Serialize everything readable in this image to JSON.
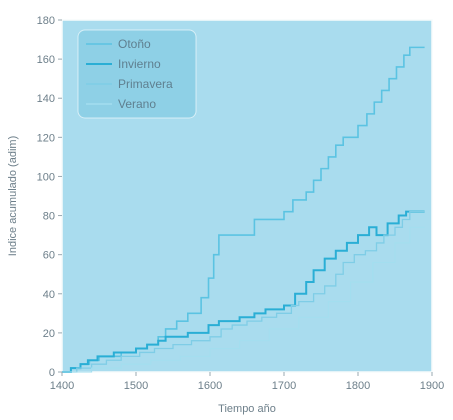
{
  "chart_data": {
    "type": "line",
    "xlabel": "Tiempo año",
    "ylabel": "Indice acumulado (adim)",
    "xlim": [
      1400,
      1900
    ],
    "ylim": [
      0,
      180
    ],
    "x_ticks": [
      "1400",
      "1500",
      "1600",
      "1700",
      "1800",
      "1900"
    ],
    "y_ticks": [
      "0",
      "20",
      "40",
      "60",
      "80",
      "100",
      "120",
      "140",
      "160",
      "180"
    ],
    "grid": false,
    "legend_position": "top-left",
    "colors": {
      "plot_background": "#a9dcee",
      "frame": "#f7fbfc",
      "legend_background": "#8ed0e6",
      "axis_text": "#6d7f8a"
    },
    "series": [
      {
        "name": "Otoño",
        "color": "#5bc3e2",
        "width": 1.6,
        "points": [
          [
            1400,
            0
          ],
          [
            1412,
            0
          ],
          [
            1412,
            2
          ],
          [
            1425,
            2
          ],
          [
            1425,
            4
          ],
          [
            1437,
            4
          ],
          [
            1437,
            6
          ],
          [
            1450,
            6
          ],
          [
            1450,
            8
          ],
          [
            1480,
            8
          ],
          [
            1480,
            10
          ],
          [
            1500,
            10
          ],
          [
            1500,
            12
          ],
          [
            1515,
            12
          ],
          [
            1515,
            14
          ],
          [
            1530,
            14
          ],
          [
            1530,
            18
          ],
          [
            1540,
            18
          ],
          [
            1540,
            22
          ],
          [
            1555,
            22
          ],
          [
            1555,
            26
          ],
          [
            1570,
            26
          ],
          [
            1570,
            30
          ],
          [
            1588,
            30
          ],
          [
            1588,
            38
          ],
          [
            1598,
            38
          ],
          [
            1598,
            48
          ],
          [
            1605,
            48
          ],
          [
            1605,
            60
          ],
          [
            1612,
            60
          ],
          [
            1612,
            70
          ],
          [
            1660,
            70
          ],
          [
            1660,
            78
          ],
          [
            1700,
            78
          ],
          [
            1700,
            82
          ],
          [
            1712,
            82
          ],
          [
            1712,
            88
          ],
          [
            1730,
            88
          ],
          [
            1730,
            92
          ],
          [
            1740,
            92
          ],
          [
            1740,
            98
          ],
          [
            1750,
            98
          ],
          [
            1750,
            104
          ],
          [
            1760,
            104
          ],
          [
            1760,
            110
          ],
          [
            1770,
            110
          ],
          [
            1770,
            116
          ],
          [
            1780,
            116
          ],
          [
            1780,
            120
          ],
          [
            1800,
            120
          ],
          [
            1800,
            126
          ],
          [
            1812,
            126
          ],
          [
            1812,
            132
          ],
          [
            1822,
            132
          ],
          [
            1822,
            138
          ],
          [
            1832,
            138
          ],
          [
            1832,
            144
          ],
          [
            1842,
            144
          ],
          [
            1842,
            150
          ],
          [
            1852,
            150
          ],
          [
            1852,
            156
          ],
          [
            1862,
            156
          ],
          [
            1862,
            162
          ],
          [
            1870,
            162
          ],
          [
            1870,
            166
          ],
          [
            1890,
            166
          ]
        ]
      },
      {
        "name": "Invierno",
        "color": "#2aaed5",
        "width": 2.0,
        "points": [
          [
            1400,
            0
          ],
          [
            1412,
            0
          ],
          [
            1412,
            2
          ],
          [
            1425,
            2
          ],
          [
            1425,
            4
          ],
          [
            1435,
            4
          ],
          [
            1435,
            6
          ],
          [
            1448,
            6
          ],
          [
            1448,
            8
          ],
          [
            1470,
            8
          ],
          [
            1470,
            10
          ],
          [
            1500,
            10
          ],
          [
            1500,
            12
          ],
          [
            1515,
            12
          ],
          [
            1515,
            14
          ],
          [
            1530,
            14
          ],
          [
            1530,
            16
          ],
          [
            1540,
            16
          ],
          [
            1540,
            18
          ],
          [
            1570,
            18
          ],
          [
            1570,
            20
          ],
          [
            1598,
            20
          ],
          [
            1598,
            24
          ],
          [
            1612,
            24
          ],
          [
            1612,
            26
          ],
          [
            1640,
            26
          ],
          [
            1640,
            28
          ],
          [
            1660,
            28
          ],
          [
            1660,
            30
          ],
          [
            1675,
            30
          ],
          [
            1675,
            32
          ],
          [
            1700,
            32
          ],
          [
            1700,
            34
          ],
          [
            1715,
            34
          ],
          [
            1715,
            40
          ],
          [
            1730,
            40
          ],
          [
            1730,
            46
          ],
          [
            1740,
            46
          ],
          [
            1740,
            52
          ],
          [
            1755,
            52
          ],
          [
            1755,
            58
          ],
          [
            1770,
            58
          ],
          [
            1770,
            62
          ],
          [
            1785,
            62
          ],
          [
            1785,
            66
          ],
          [
            1800,
            66
          ],
          [
            1800,
            70
          ],
          [
            1815,
            70
          ],
          [
            1815,
            74
          ],
          [
            1825,
            74
          ],
          [
            1825,
            70
          ],
          [
            1840,
            70
          ],
          [
            1840,
            76
          ],
          [
            1855,
            76
          ],
          [
            1855,
            80
          ],
          [
            1865,
            80
          ],
          [
            1865,
            82
          ],
          [
            1890,
            82
          ]
        ]
      },
      {
        "name": "Primavera",
        "color": "#7fcde6",
        "width": 1.3,
        "points": [
          [
            1400,
            0
          ],
          [
            1420,
            0
          ],
          [
            1420,
            2
          ],
          [
            1440,
            2
          ],
          [
            1440,
            4
          ],
          [
            1460,
            4
          ],
          [
            1460,
            6
          ],
          [
            1480,
            6
          ],
          [
            1480,
            8
          ],
          [
            1505,
            8
          ],
          [
            1505,
            10
          ],
          [
            1525,
            10
          ],
          [
            1525,
            12
          ],
          [
            1550,
            12
          ],
          [
            1550,
            14
          ],
          [
            1575,
            14
          ],
          [
            1575,
            16
          ],
          [
            1600,
            16
          ],
          [
            1600,
            18
          ],
          [
            1615,
            18
          ],
          [
            1615,
            22
          ],
          [
            1630,
            22
          ],
          [
            1630,
            24
          ],
          [
            1650,
            24
          ],
          [
            1650,
            26
          ],
          [
            1670,
            26
          ],
          [
            1670,
            28
          ],
          [
            1690,
            28
          ],
          [
            1690,
            30
          ],
          [
            1710,
            30
          ],
          [
            1710,
            34
          ],
          [
            1720,
            34
          ],
          [
            1720,
            36
          ],
          [
            1740,
            36
          ],
          [
            1740,
            40
          ],
          [
            1755,
            40
          ],
          [
            1755,
            44
          ],
          [
            1770,
            44
          ],
          [
            1770,
            50
          ],
          [
            1780,
            50
          ],
          [
            1780,
            56
          ],
          [
            1795,
            56
          ],
          [
            1795,
            60
          ],
          [
            1810,
            60
          ],
          [
            1810,
            62
          ],
          [
            1825,
            62
          ],
          [
            1825,
            66
          ],
          [
            1835,
            66
          ],
          [
            1835,
            70
          ],
          [
            1850,
            70
          ],
          [
            1850,
            74
          ],
          [
            1860,
            74
          ],
          [
            1860,
            78
          ],
          [
            1870,
            78
          ],
          [
            1870,
            82
          ],
          [
            1890,
            82
          ]
        ]
      },
      {
        "name": "Verano",
        "color": "#a3deef",
        "width": 1.1,
        "points": [
          [
            1400,
            0
          ],
          [
            1440,
            0
          ],
          [
            1440,
            2
          ],
          [
            1480,
            2
          ],
          [
            1480,
            4
          ],
          [
            1520,
            4
          ],
          [
            1520,
            6
          ],
          [
            1560,
            6
          ],
          [
            1560,
            8
          ],
          [
            1600,
            8
          ],
          [
            1600,
            12
          ],
          [
            1640,
            12
          ],
          [
            1640,
            16
          ],
          [
            1680,
            16
          ],
          [
            1680,
            22
          ],
          [
            1720,
            22
          ],
          [
            1720,
            28
          ],
          [
            1760,
            28
          ],
          [
            1760,
            36
          ],
          [
            1790,
            36
          ],
          [
            1790,
            46
          ],
          [
            1820,
            46
          ],
          [
            1820,
            56
          ],
          [
            1850,
            56
          ],
          [
            1850,
            66
          ],
          [
            1870,
            66
          ],
          [
            1870,
            74
          ],
          [
            1890,
            74
          ]
        ]
      }
    ]
  }
}
